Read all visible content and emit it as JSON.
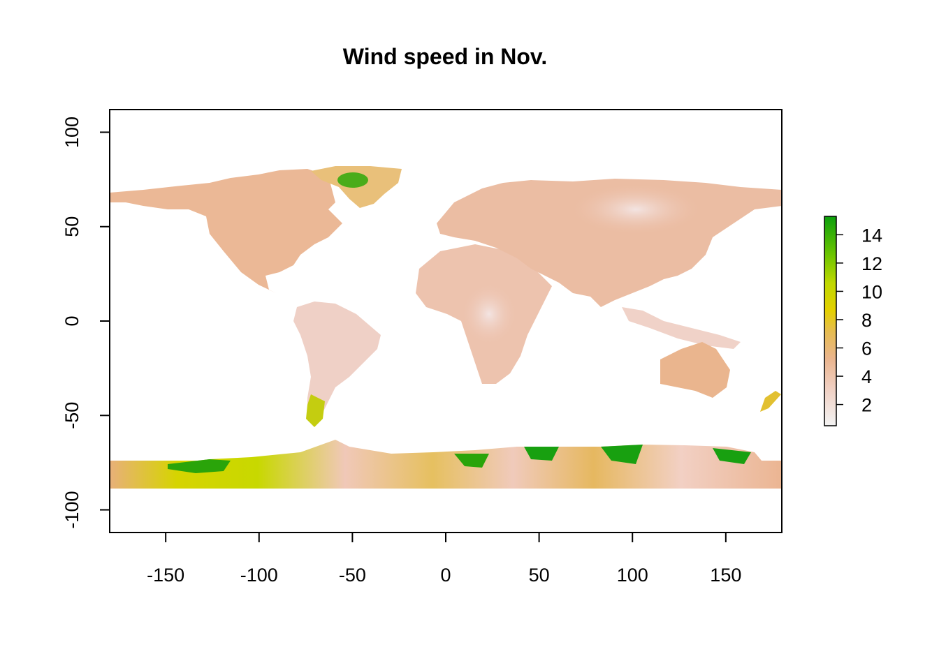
{
  "title": "Wind speed in Nov.",
  "map": {
    "type": "raster",
    "xlim": [
      -180,
      180
    ],
    "ylim": [
      -112,
      112
    ],
    "x_ticks": [
      "-150",
      "-100",
      "-50",
      "0",
      "50",
      "100",
      "150"
    ],
    "y_ticks": [
      "100",
      "50",
      "0",
      "-50",
      "-100"
    ],
    "land_color": "#edbfa6",
    "low_wind_color": "#f2dcd8",
    "mid_wind_color": "#e3b44c",
    "high_wind_color": "#0d9e0d"
  },
  "legend": {
    "ticks": [
      "14",
      "12",
      "10",
      "8",
      "6",
      "4",
      "2"
    ],
    "range": [
      0.5,
      15.3
    ],
    "colors": [
      "#f2f2f2",
      "#f0d0c0",
      "#e9b080",
      "#e6c040",
      "#d8d800",
      "#8ed000",
      "#0c9f0c"
    ]
  }
}
